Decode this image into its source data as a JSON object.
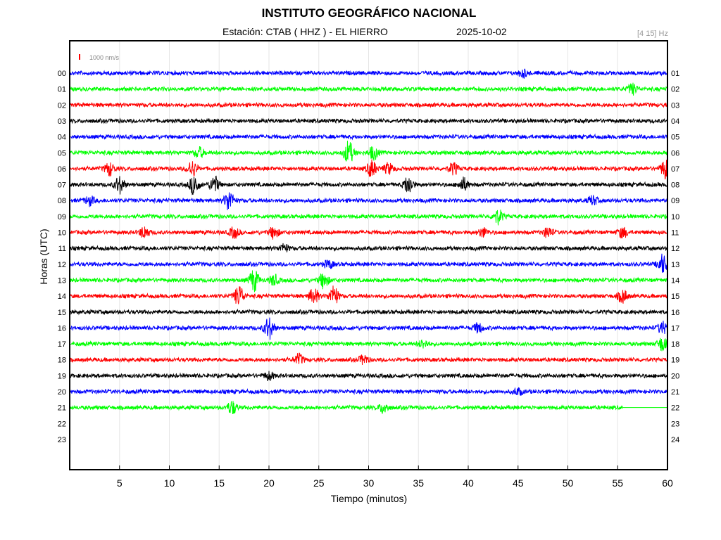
{
  "header": {
    "title": "INSTITUTO GEOGRÁFICO NACIONAL",
    "station": "Estación:  CTAB ( HHZ ) - EL HIERRO",
    "date": "2025-10-02",
    "filter": "[4 15] Hz"
  },
  "scale": {
    "label": "1000 nm/s",
    "color": "#ff0000"
  },
  "chart_data": {
    "type": "line",
    "title": "INSTITUTO GEOGRÁFICO NACIONAL",
    "xlabel": "Tiempo (minutos)",
    "ylabel": "Horas (UTC)",
    "xlim": [
      0,
      60
    ],
    "x_ticks": [
      "5",
      "10",
      "15",
      "20",
      "25",
      "30",
      "35",
      "40",
      "45",
      "50",
      "55",
      "60"
    ],
    "x_tick_values": [
      5,
      10,
      15,
      20,
      25,
      30,
      35,
      40,
      45,
      50,
      55,
      60
    ],
    "left_ticks": [
      "00",
      "01",
      "02",
      "03",
      "04",
      "05",
      "06",
      "07",
      "08",
      "09",
      "10",
      "11",
      "12",
      "13",
      "14",
      "15",
      "16",
      "17",
      "18",
      "19",
      "20",
      "21",
      "22",
      "23"
    ],
    "right_ticks": [
      "01",
      "02",
      "03",
      "04",
      "05",
      "06",
      "07",
      "08",
      "09",
      "10",
      "11",
      "12",
      "13",
      "14",
      "15",
      "16",
      "17",
      "18",
      "19",
      "20",
      "21",
      "22",
      "23",
      "24"
    ],
    "series_colors": [
      "#0000ff",
      "#00ff00",
      "#ff0000",
      "#000000"
    ],
    "grid": true,
    "trace_end_minute": 55.5,
    "traces": [
      {
        "hour": 0,
        "color": "#0000ff",
        "events": [
          [
            45.5,
            0.6
          ]
        ]
      },
      {
        "hour": 1,
        "color": "#00ff00",
        "events": [
          [
            56.5,
            0.8
          ]
        ]
      },
      {
        "hour": 2,
        "color": "#ff0000",
        "events": []
      },
      {
        "hour": 3,
        "color": "#000000",
        "events": []
      },
      {
        "hour": 4,
        "color": "#0000ff",
        "events": []
      },
      {
        "hour": 5,
        "color": "#00ff00",
        "events": [
          [
            13,
            0.8
          ],
          [
            28,
            1.8
          ],
          [
            30.5,
            1.0
          ]
        ]
      },
      {
        "hour": 6,
        "color": "#ff0000",
        "events": [
          [
            4,
            1.0
          ],
          [
            12.3,
            1.2
          ],
          [
            30.3,
            1.3
          ],
          [
            32,
            0.8
          ],
          [
            38.5,
            0.9
          ],
          [
            59.8,
            1.5
          ]
        ]
      },
      {
        "hour": 7,
        "color": "#000000",
        "events": [
          [
            5,
            1.3
          ],
          [
            12.5,
            1.5
          ],
          [
            14.5,
            1.3
          ],
          [
            34,
            1.4
          ],
          [
            39.5,
            1.0
          ]
        ]
      },
      {
        "hour": 8,
        "color": "#0000ff",
        "events": [
          [
            2,
            0.7
          ],
          [
            16,
            1.6
          ],
          [
            52.5,
            0.7
          ]
        ]
      },
      {
        "hour": 9,
        "color": "#00ff00",
        "events": [
          [
            43,
            1.1
          ]
        ]
      },
      {
        "hour": 10,
        "color": "#ff0000",
        "events": [
          [
            7.5,
            0.9
          ],
          [
            16.5,
            0.8
          ],
          [
            20.5,
            0.9
          ],
          [
            41.5,
            0.7
          ],
          [
            48,
            0.8
          ],
          [
            55.5,
            0.8
          ]
        ]
      },
      {
        "hour": 11,
        "color": "#000000",
        "events": [
          [
            21.5,
            0.6
          ]
        ]
      },
      {
        "hour": 12,
        "color": "#0000ff",
        "events": [
          [
            26,
            0.6
          ],
          [
            59.5,
            1.5
          ]
        ]
      },
      {
        "hour": 13,
        "color": "#00ff00",
        "events": [
          [
            18.5,
            1.7
          ],
          [
            20.5,
            0.8
          ],
          [
            25.5,
            1.2
          ]
        ]
      },
      {
        "hour": 14,
        "color": "#ff0000",
        "events": [
          [
            17,
            1.6
          ],
          [
            24.5,
            1.2
          ],
          [
            26.5,
            1.5
          ],
          [
            55.5,
            1.0
          ]
        ]
      },
      {
        "hour": 15,
        "color": "#000000",
        "events": []
      },
      {
        "hour": 16,
        "color": "#0000ff",
        "events": [
          [
            20,
            1.7
          ],
          [
            41,
            0.7
          ],
          [
            59.5,
            0.9
          ]
        ]
      },
      {
        "hour": 17,
        "color": "#00ff00",
        "events": [
          [
            35.5,
            0.6
          ],
          [
            59.5,
            1.1
          ]
        ]
      },
      {
        "hour": 18,
        "color": "#ff0000",
        "events": [
          [
            23,
            0.8
          ],
          [
            29.5,
            0.7
          ]
        ]
      },
      {
        "hour": 19,
        "color": "#000000",
        "events": [
          [
            20,
            0.6
          ]
        ]
      },
      {
        "hour": 20,
        "color": "#0000ff",
        "events": [
          [
            45,
            0.5
          ]
        ]
      },
      {
        "hour": 21,
        "color": "#00ff00",
        "events": [
          [
            16.3,
            1.0
          ],
          [
            31.5,
            0.8
          ]
        ]
      }
    ]
  }
}
